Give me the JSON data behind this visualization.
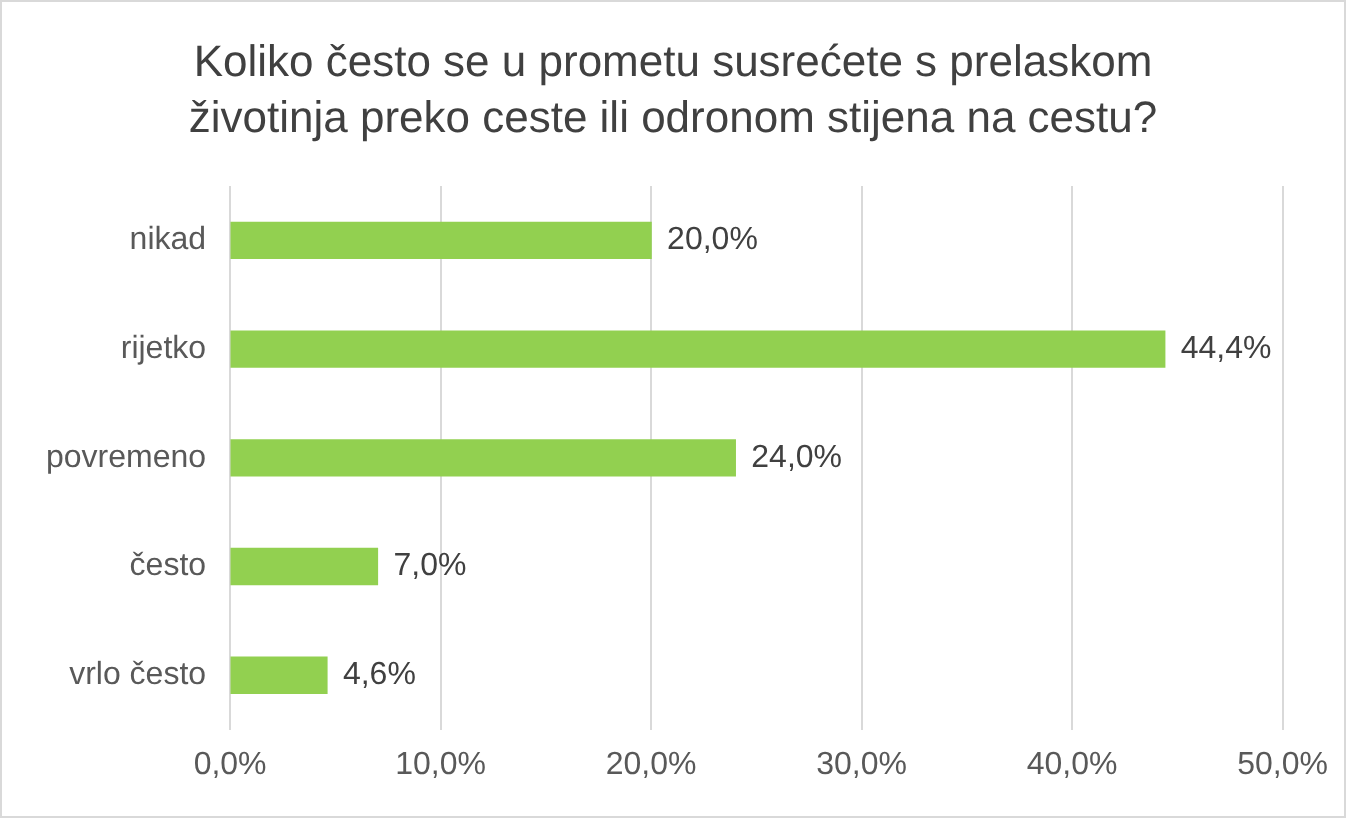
{
  "chart_data": {
    "type": "bar",
    "orientation": "horizontal",
    "title": "Koliko često se u prometu susrećete s prelaskom životinja preko ceste ili odronom stijena na cestu?",
    "categories": [
      "nikad",
      "rijetko",
      "povremeno",
      "često",
      "vrlo često"
    ],
    "values": [
      20.0,
      44.4,
      24.0,
      7.0,
      4.6
    ],
    "value_labels": [
      "20,0%",
      "44,4%",
      "24,0%",
      "7,0%",
      "4,6%"
    ],
    "color": "#92d050",
    "xlim": [
      0,
      50
    ],
    "xticks": [
      {
        "value": 0,
        "label": "0,0%"
      },
      {
        "value": 10,
        "label": "10,0%"
      },
      {
        "value": 20,
        "label": "20,0%"
      },
      {
        "value": 30,
        "label": "30,0%"
      },
      {
        "value": 40,
        "label": "40,0%"
      },
      {
        "value": 50,
        "label": "50,0%"
      }
    ],
    "grid": "x",
    "legend": false
  }
}
